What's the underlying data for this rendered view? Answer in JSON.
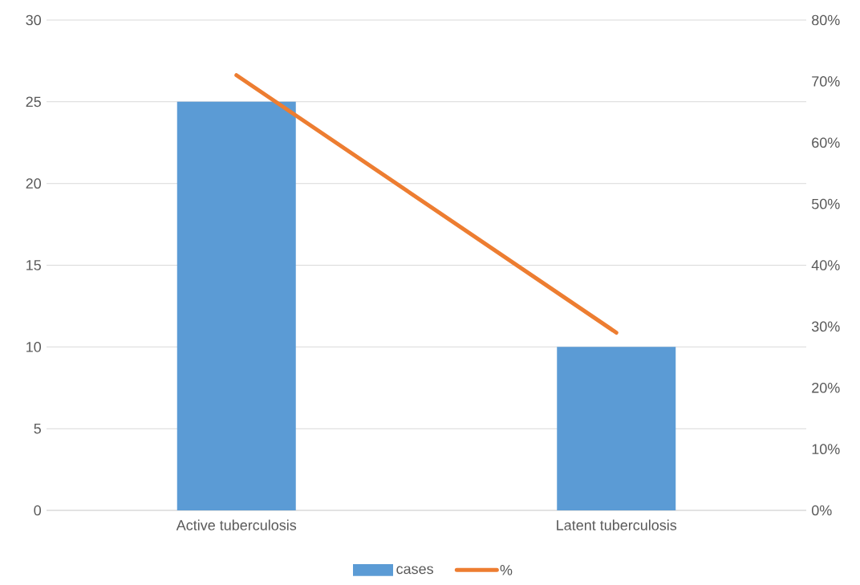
{
  "chart_data": {
    "type": "bar",
    "categories": [
      "Active tuberculosis",
      "Latent tuberculosis"
    ],
    "series": [
      {
        "name": "cases",
        "color": "#5b9bd5",
        "values": [
          25,
          10
        ]
      },
      {
        "name": "%",
        "type": "line",
        "axis": "y2",
        "color": "#ed7d31",
        "values": [
          71,
          29
        ]
      }
    ],
    "ylim": [
      0,
      30
    ],
    "yticks": [
      0,
      5,
      10,
      15,
      20,
      25,
      30
    ],
    "y2lim": [
      0,
      80
    ],
    "y2ticks": [
      {
        "value": 0,
        "label": "0%"
      },
      {
        "value": 10,
        "label": "10%"
      },
      {
        "value": 20,
        "label": "20%"
      },
      {
        "value": 30,
        "label": "30%"
      },
      {
        "value": 40,
        "label": "40%"
      },
      {
        "value": 50,
        "label": "50%"
      },
      {
        "value": 60,
        "label": "60%"
      },
      {
        "value": 70,
        "label": "70%"
      },
      {
        "value": 80,
        "label": "80%"
      }
    ],
    "grid": "y",
    "legend": "bottom"
  }
}
